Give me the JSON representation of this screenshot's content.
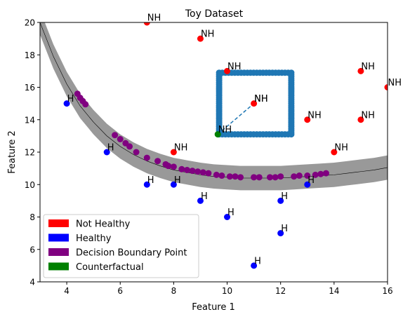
{
  "chart_data": {
    "type": "scatter",
    "title": "Toy Dataset",
    "xlabel": "Feature 1",
    "ylabel": "Feature 2",
    "xlim": [
      3,
      16
    ],
    "ylim": [
      4,
      20
    ],
    "xticks": [
      4,
      6,
      8,
      10,
      12,
      14,
      16
    ],
    "yticks": [
      4,
      6,
      8,
      10,
      12,
      14,
      16,
      18,
      20
    ],
    "grid": false,
    "legend_position": "lower-left",
    "legend": [
      {
        "label": "Not Healthy",
        "color": "#ff0000"
      },
      {
        "label": "Healthy",
        "color": "#0000ff"
      },
      {
        "label": "Decision Boundary Point",
        "color": "#800080"
      },
      {
        "label": "Counterfactual",
        "color": "#008000"
      }
    ],
    "colors": {
      "not_healthy": "#ff0000",
      "healthy": "#0000ff",
      "boundary": "#800080",
      "counterfactual": "#008000",
      "band": "#999999",
      "box": "#1f77b4"
    },
    "not_healthy": {
      "label": "NH",
      "points": [
        [
          7,
          20
        ],
        [
          9,
          19
        ],
        [
          10,
          17
        ],
        [
          15,
          17
        ],
        [
          16,
          16
        ],
        [
          11,
          15
        ],
        [
          13,
          14
        ],
        [
          15,
          14
        ],
        [
          14,
          12
        ],
        [
          8,
          12
        ]
      ]
    },
    "healthy": {
      "label": "H",
      "points": [
        [
          4,
          15
        ],
        [
          5.5,
          12
        ],
        [
          7,
          10
        ],
        [
          8,
          10
        ],
        [
          13,
          10
        ],
        [
          9,
          9
        ],
        [
          12,
          9
        ],
        [
          10,
          8
        ],
        [
          12,
          7
        ],
        [
          11,
          5
        ]
      ]
    },
    "boundary_curve": {
      "x": [
        3.0,
        3.5,
        4.0,
        4.5,
        5.0,
        5.5,
        6.0,
        6.5,
        7.0,
        7.5,
        8.0,
        8.5,
        9.0,
        9.5,
        10.0,
        10.5,
        11.0,
        11.5,
        12.0,
        12.5,
        13.0,
        13.5,
        14.0,
        14.5,
        15.0,
        15.5,
        16.0
      ],
      "y": [
        20.0,
        17.9,
        16.2,
        14.85,
        13.85,
        13.0,
        12.35,
        11.85,
        11.45,
        11.15,
        10.9,
        10.75,
        10.6,
        10.5,
        10.45,
        10.4,
        10.4,
        10.4,
        10.4,
        10.45,
        10.5,
        10.55,
        10.6,
        10.7,
        10.8,
        10.9,
        11.05
      ]
    },
    "boundary_band_halfwidth": 0.75,
    "boundary_points": [
      [
        4.4,
        15.6
      ],
      [
        4.5,
        15.35
      ],
      [
        4.6,
        15.15
      ],
      [
        4.7,
        14.95
      ],
      [
        5.8,
        13.05
      ],
      [
        6.0,
        12.8
      ],
      [
        6.2,
        12.55
      ],
      [
        6.35,
        12.35
      ],
      [
        6.6,
        12.0
      ],
      [
        7.0,
        11.65
      ],
      [
        7.4,
        11.45
      ],
      [
        7.7,
        11.25
      ],
      [
        7.8,
        11.15
      ],
      [
        8.0,
        11.1
      ],
      [
        8.3,
        10.95
      ],
      [
        8.5,
        10.9
      ],
      [
        8.7,
        10.85
      ],
      [
        8.9,
        10.8
      ],
      [
        9.1,
        10.75
      ],
      [
        9.3,
        10.7
      ],
      [
        9.6,
        10.6
      ],
      [
        9.8,
        10.55
      ],
      [
        10.1,
        10.5
      ],
      [
        10.3,
        10.5
      ],
      [
        10.5,
        10.45
      ],
      [
        11.0,
        10.45
      ],
      [
        11.2,
        10.45
      ],
      [
        11.6,
        10.45
      ],
      [
        11.8,
        10.45
      ],
      [
        12.0,
        10.5
      ],
      [
        12.5,
        10.5
      ],
      [
        12.7,
        10.55
      ],
      [
        13.0,
        10.55
      ],
      [
        13.3,
        10.6
      ],
      [
        13.5,
        10.65
      ],
      [
        13.7,
        10.7
      ]
    ],
    "counterfactual_point": [
      9.65,
      13.1
    ],
    "counterfactual_label": "NH",
    "search_box": {
      "x_range": [
        9.7,
        12.4
      ],
      "y_range": [
        13.1,
        16.9
      ],
      "spacing": 0.12
    },
    "dashed_link": {
      "from": [
        9.65,
        13.1
      ],
      "to": [
        11,
        15
      ]
    },
    "second_label_at_point": "NH"
  }
}
